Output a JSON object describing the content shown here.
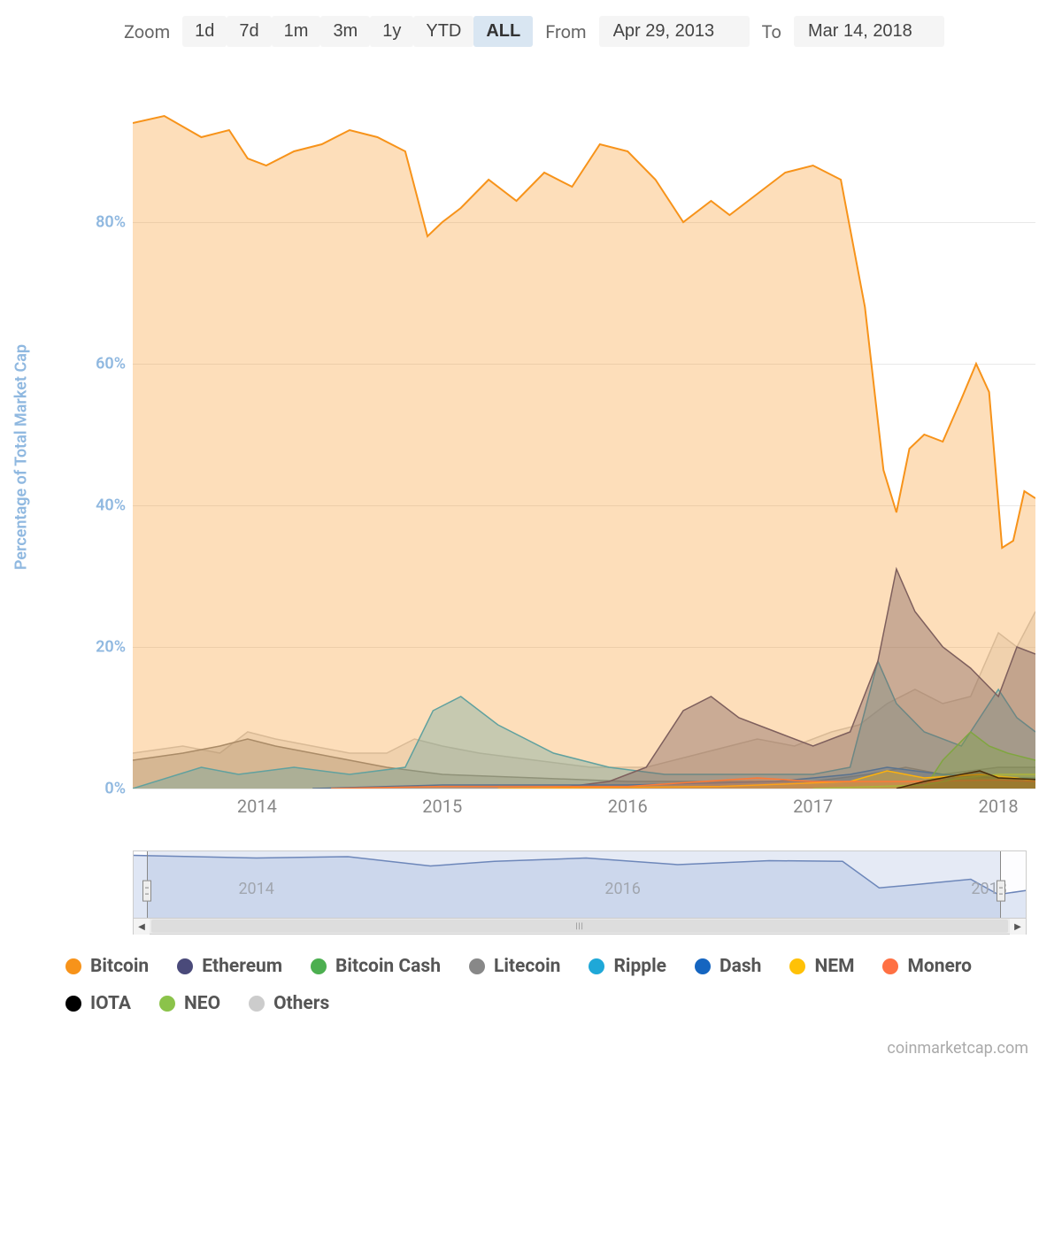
{
  "controls": {
    "zoom_label": "Zoom",
    "zoom_options": [
      "1d",
      "7d",
      "1m",
      "3m",
      "1y",
      "YTD",
      "ALL"
    ],
    "zoom_active": "ALL",
    "from_label": "From",
    "from_value": "Apr 29, 2013",
    "to_label": "To",
    "to_value": "Mar 14, 2018"
  },
  "chart": {
    "type": "area",
    "y_axis_title": "Percentage of Total Market Cap",
    "ylim": [
      0,
      100
    ],
    "yticks": [
      0,
      20,
      40,
      60,
      80
    ],
    "ytick_suffix": "%",
    "x_years": [
      2014,
      2015,
      2016,
      2017,
      2018
    ],
    "x_domain": [
      2013.33,
      2018.2
    ],
    "grid_color": "#e8e8e8",
    "background_color": "#ffffff",
    "label_color": "#8fb8e0",
    "tick_fontsize": 18,
    "axis_title_fontsize": 18,
    "series": [
      {
        "name": "Others",
        "color": "#cccccc",
        "fill_opacity": 0.35,
        "data": [
          [
            2013.33,
            5
          ],
          [
            2013.6,
            6
          ],
          [
            2013.8,
            5
          ],
          [
            2013.95,
            8
          ],
          [
            2014.1,
            7
          ],
          [
            2014.3,
            6
          ],
          [
            2014.5,
            5
          ],
          [
            2014.7,
            5
          ],
          [
            2014.85,
            7
          ],
          [
            2015.0,
            6
          ],
          [
            2015.2,
            5
          ],
          [
            2015.5,
            4
          ],
          [
            2015.8,
            3
          ],
          [
            2016.1,
            3
          ],
          [
            2016.4,
            5
          ],
          [
            2016.7,
            7
          ],
          [
            2016.9,
            6
          ],
          [
            2017.1,
            8
          ],
          [
            2017.25,
            9
          ],
          [
            2017.4,
            12
          ],
          [
            2017.55,
            14
          ],
          [
            2017.7,
            12
          ],
          [
            2017.85,
            13
          ],
          [
            2018.0,
            22
          ],
          [
            2018.1,
            20
          ],
          [
            2018.2,
            25
          ]
        ]
      },
      {
        "name": "Litecoin",
        "color": "#888888",
        "fill_opacity": 0.38,
        "data": [
          [
            2013.33,
            4
          ],
          [
            2013.6,
            5
          ],
          [
            2013.8,
            6
          ],
          [
            2013.95,
            7
          ],
          [
            2014.1,
            6
          ],
          [
            2014.3,
            5
          ],
          [
            2014.5,
            4
          ],
          [
            2014.7,
            3
          ],
          [
            2015.0,
            2
          ],
          [
            2015.5,
            1.5
          ],
          [
            2016.0,
            1
          ],
          [
            2016.5,
            1
          ],
          [
            2017.0,
            1
          ],
          [
            2017.3,
            2
          ],
          [
            2017.5,
            3
          ],
          [
            2017.7,
            2
          ],
          [
            2018.0,
            3
          ],
          [
            2018.2,
            3
          ]
        ]
      },
      {
        "name": "Ripple",
        "color": "#1fa8d8",
        "fill_opacity": 0.35,
        "data": [
          [
            2013.33,
            0
          ],
          [
            2013.7,
            3
          ],
          [
            2013.9,
            2
          ],
          [
            2014.2,
            3
          ],
          [
            2014.5,
            2
          ],
          [
            2014.8,
            3
          ],
          [
            2014.95,
            11
          ],
          [
            2015.1,
            13
          ],
          [
            2015.3,
            9
          ],
          [
            2015.6,
            5
          ],
          [
            2015.9,
            3
          ],
          [
            2016.2,
            2
          ],
          [
            2016.5,
            2
          ],
          [
            2016.8,
            2
          ],
          [
            2017.0,
            2
          ],
          [
            2017.2,
            3
          ],
          [
            2017.35,
            18
          ],
          [
            2017.45,
            12
          ],
          [
            2017.6,
            8
          ],
          [
            2017.8,
            6
          ],
          [
            2018.0,
            14
          ],
          [
            2018.1,
            10
          ],
          [
            2018.2,
            8
          ]
        ]
      },
      {
        "name": "Ethereum",
        "color": "#4a4a7a",
        "fill_opacity": 0.4,
        "data": [
          [
            2015.6,
            0
          ],
          [
            2015.9,
            1
          ],
          [
            2016.1,
            3
          ],
          [
            2016.3,
            11
          ],
          [
            2016.45,
            13
          ],
          [
            2016.6,
            10
          ],
          [
            2016.8,
            8
          ],
          [
            2017.0,
            6
          ],
          [
            2017.2,
            8
          ],
          [
            2017.35,
            18
          ],
          [
            2017.45,
            31
          ],
          [
            2017.55,
            25
          ],
          [
            2017.7,
            20
          ],
          [
            2017.85,
            17
          ],
          [
            2018.0,
            13
          ],
          [
            2018.1,
            20
          ],
          [
            2018.2,
            19
          ]
        ]
      },
      {
        "name": "Dash",
        "color": "#1565c0",
        "fill_opacity": 0.3,
        "data": [
          [
            2014.3,
            0
          ],
          [
            2015.0,
            0.5
          ],
          [
            2016.0,
            0.5
          ],
          [
            2016.8,
            1
          ],
          [
            2017.2,
            2
          ],
          [
            2017.4,
            3
          ],
          [
            2017.7,
            2
          ],
          [
            2018.0,
            1.5
          ],
          [
            2018.2,
            1.5
          ]
        ]
      },
      {
        "name": "Bitcoin Cash",
        "color": "#4caf50",
        "fill_opacity": 0.35,
        "data": [
          [
            2017.6,
            0
          ],
          [
            2017.7,
            4
          ],
          [
            2017.85,
            8
          ],
          [
            2017.95,
            6
          ],
          [
            2018.05,
            5
          ],
          [
            2018.2,
            4
          ]
        ]
      },
      {
        "name": "NEM",
        "color": "#ffc107",
        "fill_opacity": 0.35,
        "data": [
          [
            2015.3,
            0
          ],
          [
            2016.5,
            0.3
          ],
          [
            2017.2,
            1
          ],
          [
            2017.4,
            2.5
          ],
          [
            2017.6,
            1.5
          ],
          [
            2017.9,
            2
          ],
          [
            2018.1,
            1.5
          ],
          [
            2018.2,
            1
          ]
        ]
      },
      {
        "name": "Monero",
        "color": "#ff7043",
        "fill_opacity": 0.3,
        "data": [
          [
            2014.4,
            0
          ],
          [
            2015.0,
            0.3
          ],
          [
            2016.0,
            0.3
          ],
          [
            2016.7,
            1.5
          ],
          [
            2017.0,
            1
          ],
          [
            2017.5,
            1
          ],
          [
            2018.0,
            1.2
          ],
          [
            2018.2,
            1
          ]
        ]
      },
      {
        "name": "NEO",
        "color": "#8bc34a",
        "fill_opacity": 0.3,
        "data": [
          [
            2017.0,
            0
          ],
          [
            2017.6,
            0.5
          ],
          [
            2017.8,
            1.5
          ],
          [
            2018.0,
            2
          ],
          [
            2018.2,
            2
          ]
        ]
      },
      {
        "name": "IOTA",
        "color": "#000000",
        "fill_opacity": 0.3,
        "data": [
          [
            2017.45,
            0
          ],
          [
            2017.6,
            1
          ],
          [
            2017.9,
            2.5
          ],
          [
            2018.0,
            1.5
          ],
          [
            2018.2,
            1.3
          ]
        ]
      },
      {
        "name": "Bitcoin",
        "color": "#f7931a",
        "fill_opacity": 0.3,
        "line_width": 2,
        "data": [
          [
            2013.33,
            94
          ],
          [
            2013.5,
            95
          ],
          [
            2013.7,
            92
          ],
          [
            2013.85,
            93
          ],
          [
            2013.95,
            89
          ],
          [
            2014.05,
            88
          ],
          [
            2014.2,
            90
          ],
          [
            2014.35,
            91
          ],
          [
            2014.5,
            93
          ],
          [
            2014.65,
            92
          ],
          [
            2014.8,
            90
          ],
          [
            2014.92,
            78
          ],
          [
            2015.0,
            80
          ],
          [
            2015.1,
            82
          ],
          [
            2015.25,
            86
          ],
          [
            2015.4,
            83
          ],
          [
            2015.55,
            87
          ],
          [
            2015.7,
            85
          ],
          [
            2015.85,
            91
          ],
          [
            2016.0,
            90
          ],
          [
            2016.15,
            86
          ],
          [
            2016.3,
            80
          ],
          [
            2016.45,
            83
          ],
          [
            2016.55,
            81
          ],
          [
            2016.7,
            84
          ],
          [
            2016.85,
            87
          ],
          [
            2017.0,
            88
          ],
          [
            2017.15,
            86
          ],
          [
            2017.28,
            68
          ],
          [
            2017.38,
            45
          ],
          [
            2017.45,
            39
          ],
          [
            2017.52,
            48
          ],
          [
            2017.6,
            50
          ],
          [
            2017.7,
            49
          ],
          [
            2017.8,
            55
          ],
          [
            2017.88,
            60
          ],
          [
            2017.95,
            56
          ],
          [
            2018.02,
            34
          ],
          [
            2018.08,
            35
          ],
          [
            2018.14,
            42
          ],
          [
            2018.2,
            41
          ]
        ]
      }
    ]
  },
  "navigator": {
    "x_domain": [
      2013.33,
      2018.2
    ],
    "x_labels": [
      2014,
      2016,
      2018
    ],
    "line_color": "#6b84b8",
    "fill_color": "#dfe6f4",
    "selection_color": "rgba(120,150,200,0.18)",
    "data": [
      [
        2013.33,
        94
      ],
      [
        2014.0,
        90
      ],
      [
        2014.5,
        92
      ],
      [
        2014.95,
        78
      ],
      [
        2015.3,
        85
      ],
      [
        2015.8,
        90
      ],
      [
        2016.3,
        80
      ],
      [
        2016.8,
        86
      ],
      [
        2017.2,
        85
      ],
      [
        2017.4,
        45
      ],
      [
        2017.6,
        50
      ],
      [
        2017.9,
        58
      ],
      [
        2018.05,
        35
      ],
      [
        2018.2,
        41
      ]
    ]
  },
  "legend": {
    "items": [
      {
        "label": "Bitcoin",
        "color": "#f7931a"
      },
      {
        "label": "Ethereum",
        "color": "#4a4a7a"
      },
      {
        "label": "Bitcoin Cash",
        "color": "#4caf50"
      },
      {
        "label": "Litecoin",
        "color": "#888888"
      },
      {
        "label": "Ripple",
        "color": "#1fa8d8"
      },
      {
        "label": "Dash",
        "color": "#1565c0"
      },
      {
        "label": "NEM",
        "color": "#ffc107"
      },
      {
        "label": "Monero",
        "color": "#ff7043"
      },
      {
        "label": "IOTA",
        "color": "#000000"
      },
      {
        "label": "NEO",
        "color": "#8bc34a"
      },
      {
        "label": "Others",
        "color": "#cccccc"
      }
    ]
  },
  "attribution": "coinmarketcap.com"
}
